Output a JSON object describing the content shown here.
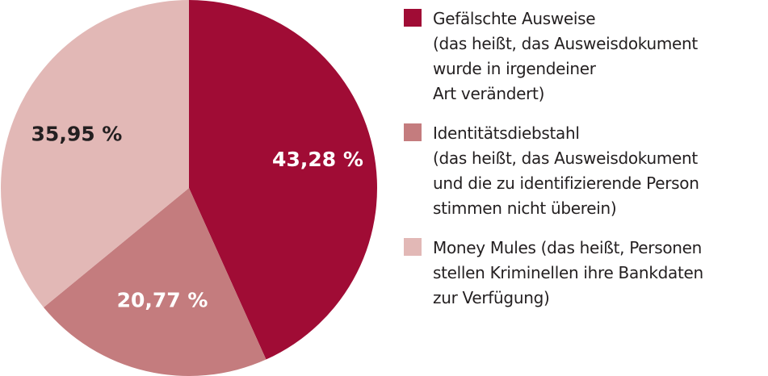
{
  "chart_data": {
    "type": "pie",
    "slices": [
      {
        "label": "Gefälschte Ausweise\n(das heißt, das Ausweisdokument\nwurde in irgendeiner\nArt verändert)",
        "value": 43.28,
        "value_label": "43,28 %",
        "color": "#a00c35",
        "label_color": "#ffffff"
      },
      {
        "label": "Identitätsdiebstahl\n(das heißt, das Ausweisdokument\nund die zu identifizierende Person\nstimmen nicht überein)",
        "value": 20.77,
        "value_label": "20,77 %",
        "color": "#c47c7e",
        "label_color": "#ffffff"
      },
      {
        "label": "Money Mules (das heißt, Personen\nstellen Kriminellen ihre Bankdaten\n zur Verfügung)",
        "value": 35.95,
        "value_label": "35,95 %",
        "color": "#e2b8b6",
        "label_color": "#231f20"
      }
    ],
    "start": "top",
    "direction": "clockwise",
    "legend_position": "right"
  }
}
